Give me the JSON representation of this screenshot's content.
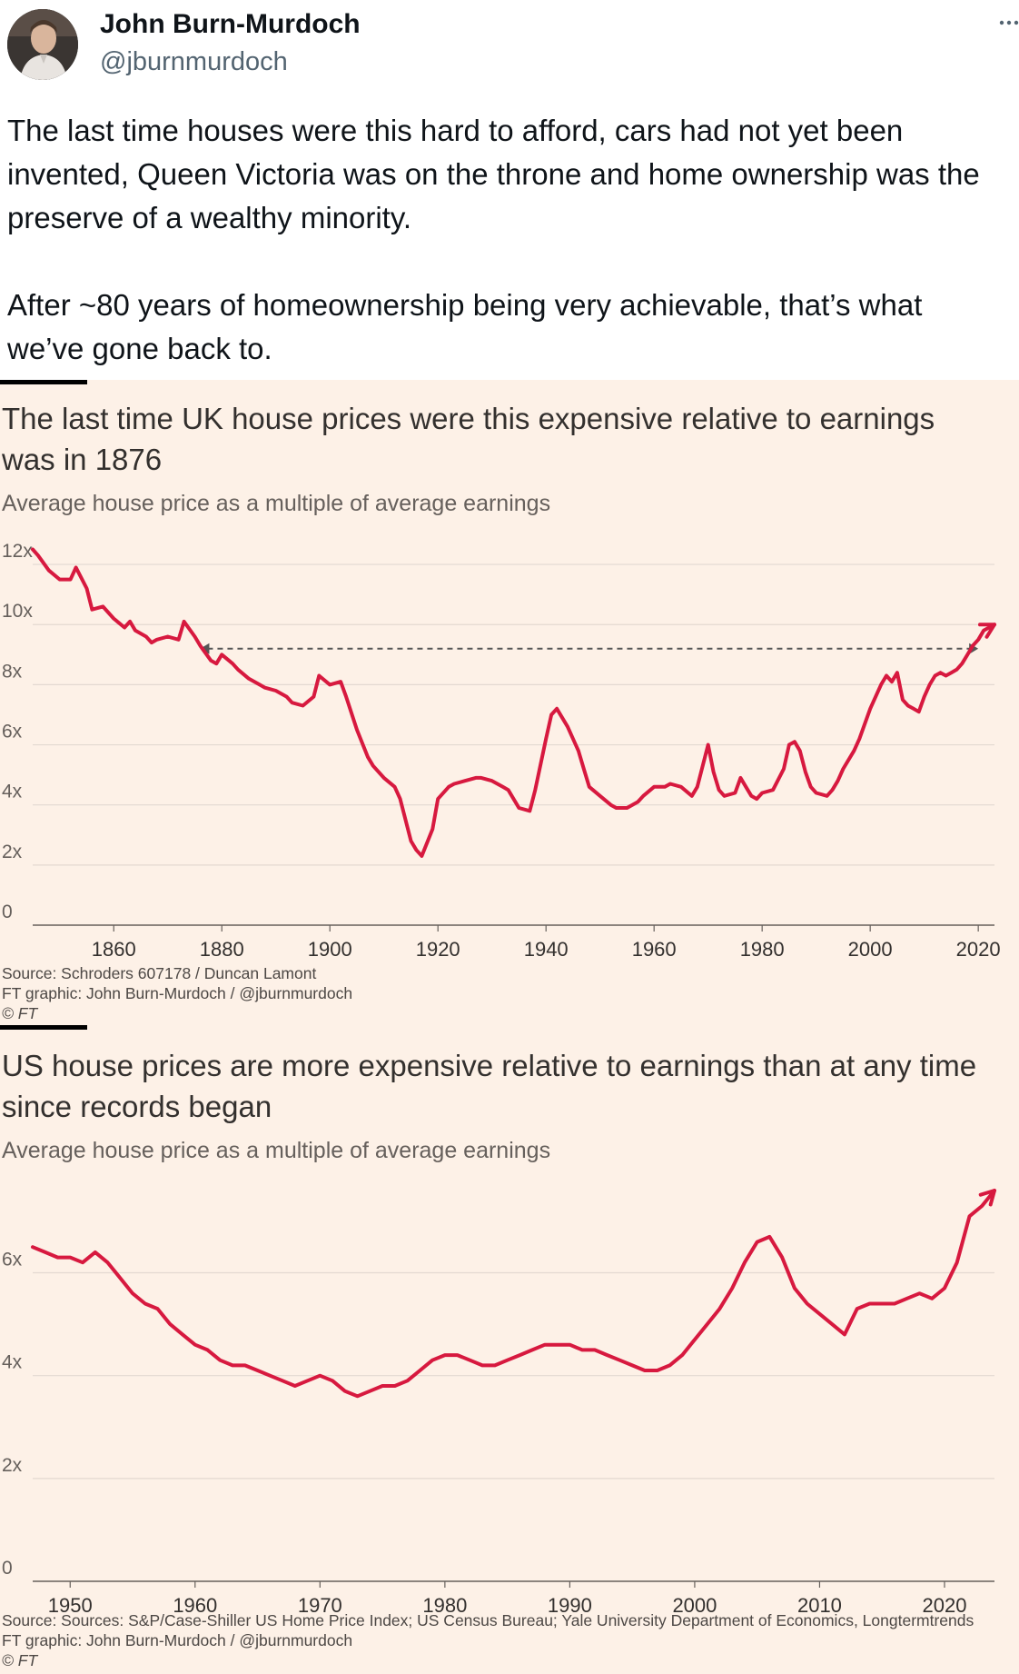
{
  "tweet": {
    "author_name": "John Burn-Murdoch",
    "author_handle": "@jburnmurdoch",
    "paragraphs": [
      "The last time houses were this hard to afford, cars had not yet been invented, Queen Victoria was on the throne and home ownership was the preserve of a wealthy minority.",
      "After ~80 years of homeownership being very achievable, that’s what we’ve gone back to."
    ]
  },
  "colors": {
    "line": "#d7193f",
    "background": "#fdf1e7",
    "grid": "#e3d9d1",
    "text": "#33302e",
    "arrow": "#555555"
  },
  "icons": {
    "more": "more-dots-icon",
    "avatar": "avatar"
  },
  "chart_data": [
    {
      "type": "line",
      "title": "The last time UK house prices were this expensive relative to earnings was in 1876",
      "subtitle": "Average house price as a multiple of average earnings",
      "y_ticks": [
        0,
        2,
        4,
        6,
        8,
        10,
        12
      ],
      "y_tick_labels": [
        "0",
        "2x",
        "4x",
        "6x",
        "8x",
        "10x",
        "12x"
      ],
      "x_ticks": [
        1860,
        1880,
        1900,
        1920,
        1940,
        1960,
        1980,
        2000,
        2020
      ],
      "x_tick_labels": [
        "1860",
        "1880",
        "1900",
        "1920",
        "1940",
        "1960",
        "1980",
        "2000",
        "2020"
      ],
      "xlim": [
        1845,
        2023
      ],
      "ylim": [
        0,
        13
      ],
      "annotation": {
        "type": "dashed-double-arrow",
        "x_start": 1876,
        "x_end": 2020,
        "y": 9.2
      },
      "series": [
        {
          "name": "UK house price to earnings",
          "x": [
            1845,
            1846,
            1848,
            1850,
            1852,
            1853,
            1855,
            1856,
            1858,
            1860,
            1862,
            1863,
            1864,
            1866,
            1867,
            1868,
            1870,
            1872,
            1873,
            1875,
            1876,
            1878,
            1879,
            1880,
            1882,
            1883,
            1885,
            1887,
            1888,
            1890,
            1892,
            1893,
            1895,
            1897,
            1898,
            1900,
            1902,
            1903,
            1905,
            1907,
            1908,
            1910,
            1912,
            1913,
            1915,
            1916,
            1917,
            1919,
            1920,
            1922,
            1923,
            1925,
            1927,
            1928,
            1930,
            1932,
            1933,
            1935,
            1937,
            1938,
            1940,
            1941,
            1942,
            1944,
            1946,
            1947,
            1948,
            1950,
            1952,
            1953,
            1955,
            1957,
            1958,
            1960,
            1962,
            1963,
            1965,
            1967,
            1968,
            1970,
            1971,
            1972,
            1973,
            1975,
            1976,
            1977,
            1978,
            1979,
            1980,
            1982,
            1984,
            1985,
            1986,
            1987,
            1988,
            1989,
            1990,
            1992,
            1993,
            1994,
            1995,
            1997,
            1998,
            2000,
            2002,
            2003,
            2004,
            2005,
            2006,
            2007,
            2008,
            2009,
            2010,
            2011,
            2012,
            2013,
            2014,
            2015,
            2016,
            2017,
            2018,
            2019,
            2020,
            2021,
            2022,
            2023
          ],
          "values": [
            12.5,
            12.3,
            11.8,
            11.5,
            11.5,
            11.9,
            11.2,
            10.5,
            10.6,
            10.2,
            9.9,
            10.1,
            9.8,
            9.6,
            9.4,
            9.5,
            9.6,
            9.5,
            10.1,
            9.6,
            9.3,
            8.8,
            8.7,
            9.0,
            8.7,
            8.5,
            8.2,
            8.0,
            7.9,
            7.8,
            7.6,
            7.4,
            7.3,
            7.6,
            8.3,
            8.0,
            8.1,
            7.6,
            6.5,
            5.6,
            5.3,
            4.9,
            4.6,
            4.2,
            2.8,
            2.5,
            2.3,
            3.2,
            4.2,
            4.6,
            4.7,
            4.8,
            4.9,
            4.9,
            4.8,
            4.6,
            4.5,
            3.9,
            3.8,
            4.5,
            6.2,
            7.0,
            7.2,
            6.6,
            5.8,
            5.2,
            4.6,
            4.3,
            4.0,
            3.9,
            3.9,
            4.1,
            4.3,
            4.6,
            4.6,
            4.7,
            4.6,
            4.3,
            4.6,
            6.0,
            5.1,
            4.5,
            4.3,
            4.4,
            4.9,
            4.6,
            4.3,
            4.2,
            4.4,
            4.5,
            5.2,
            6.0,
            6.1,
            5.8,
            5.1,
            4.6,
            4.4,
            4.3,
            4.5,
            4.8,
            5.2,
            5.8,
            6.2,
            7.2,
            8.0,
            8.3,
            8.1,
            8.4,
            7.5,
            7.3,
            7.2,
            7.1,
            7.6,
            8.0,
            8.3,
            8.4,
            8.3,
            8.4,
            8.5,
            8.7,
            9.0,
            9.3,
            9.5,
            9.8,
            9.9,
            10.0
          ]
        }
      ],
      "source_lines": [
        "Source: Schroders 607178 / Duncan Lamont",
        "FT graphic: John Burn-Murdoch / @jburnmurdoch",
        "© FT"
      ]
    },
    {
      "type": "line",
      "title": "US house prices are more expensive relative to earnings than at any time since records began",
      "subtitle": "Average house price as a multiple of average earnings",
      "y_ticks": [
        0,
        2,
        4,
        6
      ],
      "y_tick_labels": [
        "0",
        "2x",
        "4x",
        "6x"
      ],
      "x_ticks": [
        1950,
        1960,
        1970,
        1980,
        1990,
        2000,
        2010,
        2020
      ],
      "x_tick_labels": [
        "1950",
        "1960",
        "1970",
        "1980",
        "1990",
        "2000",
        "2010",
        "2020"
      ],
      "xlim": [
        1947,
        2024
      ],
      "ylim": [
        0,
        7.6
      ],
      "series": [
        {
          "name": "US house price to earnings",
          "x": [
            1947,
            1948,
            1949,
            1950,
            1951,
            1952,
            1953,
            1954,
            1955,
            1956,
            1957,
            1958,
            1959,
            1960,
            1961,
            1962,
            1963,
            1964,
            1965,
            1966,
            1967,
            1968,
            1969,
            1970,
            1971,
            1972,
            1973,
            1974,
            1975,
            1976,
            1977,
            1978,
            1979,
            1980,
            1981,
            1982,
            1983,
            1984,
            1985,
            1986,
            1987,
            1988,
            1989,
            1990,
            1991,
            1992,
            1993,
            1994,
            1995,
            1996,
            1997,
            1998,
            1999,
            2000,
            2001,
            2002,
            2003,
            2004,
            2005,
            2006,
            2007,
            2008,
            2009,
            2010,
            2011,
            2012,
            2013,
            2014,
            2015,
            2016,
            2017,
            2018,
            2019,
            2020,
            2021,
            2022,
            2023,
            2024
          ],
          "values": [
            6.5,
            6.4,
            6.3,
            6.3,
            6.2,
            6.4,
            6.2,
            5.9,
            5.6,
            5.4,
            5.3,
            5.0,
            4.8,
            4.6,
            4.5,
            4.3,
            4.2,
            4.2,
            4.1,
            4.0,
            3.9,
            3.8,
            3.9,
            4.0,
            3.9,
            3.7,
            3.6,
            3.7,
            3.8,
            3.8,
            3.9,
            4.1,
            4.3,
            4.4,
            4.4,
            4.3,
            4.2,
            4.2,
            4.3,
            4.4,
            4.5,
            4.6,
            4.6,
            4.6,
            4.5,
            4.5,
            4.4,
            4.3,
            4.2,
            4.1,
            4.1,
            4.2,
            4.4,
            4.7,
            5.0,
            5.3,
            5.7,
            6.2,
            6.6,
            6.7,
            6.3,
            5.7,
            5.4,
            5.2,
            5.0,
            4.8,
            5.3,
            5.4,
            5.4,
            5.4,
            5.5,
            5.6,
            5.5,
            5.7,
            6.2,
            7.1,
            7.3,
            7.6
          ]
        }
      ],
      "source_lines": [
        "Source: Sources: S&P/Case-Shiller US Home Price Index; US Census Bureau; Yale University Department of Economics, Longtermtrends",
        "FT graphic: John Burn-Murdoch / @jburnmurdoch",
        "© FT"
      ]
    }
  ]
}
